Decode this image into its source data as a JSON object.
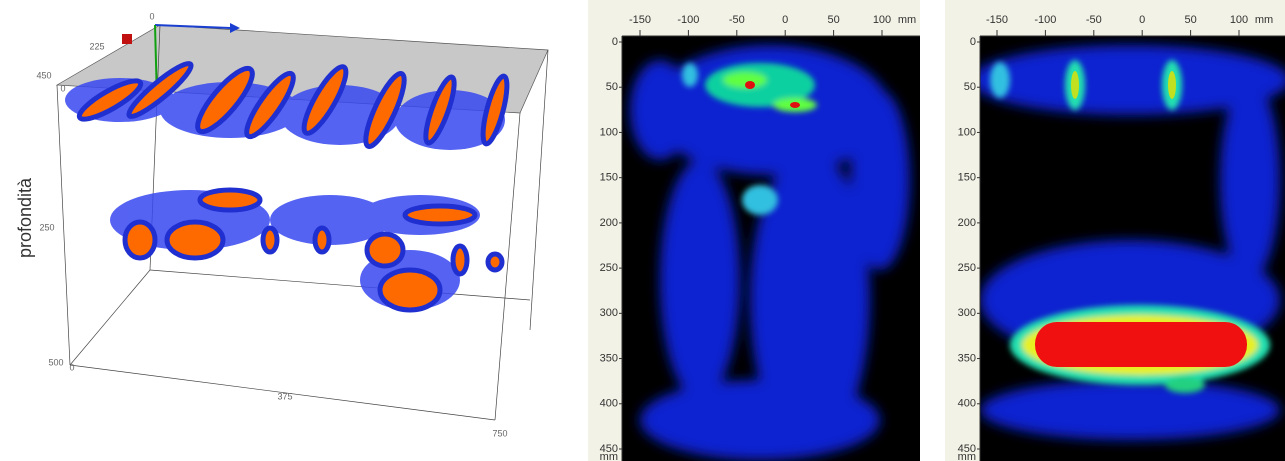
{
  "view_3d": {
    "depth_label": "profondità",
    "top_axis": [
      0,
      225,
      450
    ],
    "depth_axis": [
      0,
      250,
      500
    ],
    "length_axis": [
      0,
      375,
      750
    ]
  },
  "sections": [
    {
      "x_ticks": [
        -150,
        -100,
        -50,
        0,
        50,
        100
      ],
      "x_unit": "mm",
      "y_ticks": [
        0,
        50,
        100,
        150,
        200,
        250,
        300,
        350,
        400,
        450
      ],
      "y_unit": "mm"
    },
    {
      "x_ticks": [
        -150,
        -100,
        -50,
        0,
        50,
        100
      ],
      "x_unit": "mm",
      "y_ticks": [
        0,
        50,
        100,
        150,
        200,
        250,
        300,
        350,
        400,
        450
      ],
      "y_unit": "mm"
    }
  ]
}
